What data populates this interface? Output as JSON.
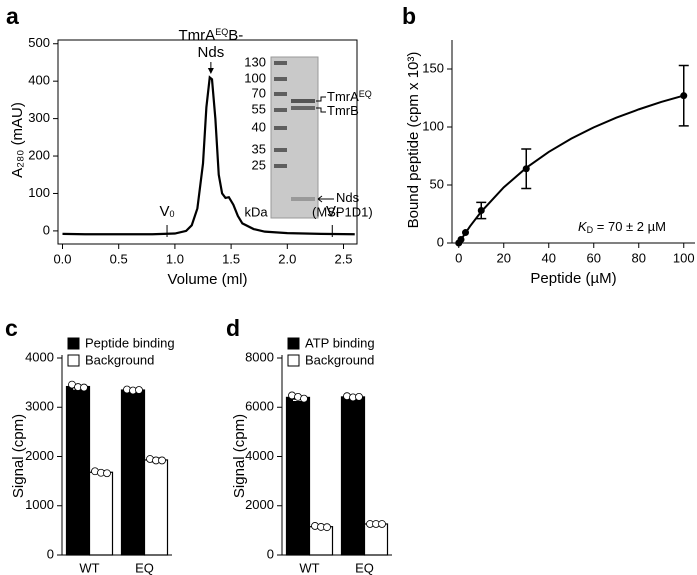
{
  "chart_data": [
    {
      "type": "line",
      "panel": "a",
      "x_label": "Volume (ml)",
      "y_label": "A₂₈₀ (mAU)",
      "xlim": [
        -0.04,
        2.62
      ],
      "ylim": [
        -35,
        510
      ],
      "xticks": [
        {
          "value": 0,
          "label": "0.0"
        },
        0.5,
        {
          "value": 1,
          "label": "1.0"
        },
        1.5,
        {
          "value": 2,
          "label": "2.0"
        },
        2.5
      ],
      "yticks": [
        0,
        100,
        200,
        300,
        400,
        500
      ],
      "series": [
        {
          "color": "#000000",
          "x": [
            0,
            0.2,
            0.5,
            0.8,
            1.0,
            1.1,
            1.15,
            1.2,
            1.25,
            1.28,
            1.31,
            1.33,
            1.36,
            1.39,
            1.42,
            1.45,
            1.48,
            1.52,
            1.56,
            1.6,
            1.7,
            1.8,
            2.0,
            2.3,
            2.6
          ],
          "values": [
            -8,
            -9,
            -9,
            -9,
            -7,
            0,
            15,
            60,
            180,
            330,
            410,
            405,
            300,
            150,
            100,
            88,
            90,
            70,
            40,
            20,
            5,
            -2,
            -6,
            -8,
            -9
          ]
        }
      ],
      "annotations": [
        {
          "text": [
            "TmrA",
            "EQ",
            "B-"
          ],
          "line2": "Nds",
          "x": 1.32
        },
        {
          "text": [
            "V",
            "0"
          ],
          "x": 0.93
        },
        {
          "text": [
            "V",
            "t"
          ],
          "x": 2.4
        }
      ],
      "gel": {
        "markers": [
          130,
          100,
          70,
          55,
          40,
          35,
          25
        ],
        "unit": "kDa",
        "bands": [
          [
            "TmrA",
            "EQ"
          ],
          [
            "TmrB"
          ],
          [
            "Nds"
          ]
        ],
        "note": "(MSP1D1)"
      }
    },
    {
      "type": "scatter",
      "panel": "b",
      "x_label": "Peptide (µM)",
      "y_label": "Bound peptide (cpm x 10³)",
      "xlim": [
        -3,
        105
      ],
      "ylim": [
        0,
        175
      ],
      "xticks": [
        0,
        20,
        40,
        60,
        80,
        100
      ],
      "yticks": [
        0,
        50,
        100,
        150
      ],
      "series": [
        {
          "color": "#000000",
          "x": [
            0,
            1,
            3,
            10,
            30,
            100
          ],
          "values": [
            0,
            3,
            9,
            28,
            64,
            127
          ],
          "errors": [
            null,
            null,
            null,
            7,
            17,
            26
          ]
        }
      ],
      "fit": {
        "color": "#000000",
        "x": [
          0,
          5,
          10,
          20,
          30,
          40,
          50,
          60,
          70,
          80,
          90,
          100
        ],
        "values": [
          0,
          14.4,
          27,
          48,
          64.8,
          78.5,
          90,
          99.7,
          108,
          115.2,
          121.6,
          127.1
        ]
      },
      "annotation": [
        "K",
        "D",
        " = 70 ± 2 µM"
      ]
    },
    {
      "type": "bar",
      "panel": "c",
      "y_label": "Signal (cpm)",
      "categories": [
        "WT",
        "EQ"
      ],
      "ylim": [
        0,
        4000
      ],
      "yticks": [
        0,
        1000,
        2000,
        3000,
        4000
      ],
      "legend": "top-left",
      "series": [
        {
          "name": "Peptide binding",
          "color": "#000000",
          "values": [
            3420,
            3350
          ],
          "errors": [
            50,
            30
          ],
          "replicates": [
            [
              3460,
              3410,
              3400
            ],
            [
              3360,
              3340,
              3350
            ]
          ]
        },
        {
          "name": "Background",
          "color": "#ffffff",
          "values": [
            1680,
            1930
          ],
          "errors": [
            30,
            40
          ],
          "replicates": [
            [
              1700,
              1670,
              1660
            ],
            [
              1950,
              1920,
              1920
            ]
          ]
        }
      ]
    },
    {
      "type": "bar",
      "panel": "d",
      "y_label": "Signal (cpm)",
      "categories": [
        "WT",
        "EQ"
      ],
      "ylim": [
        0,
        8000
      ],
      "yticks": [
        0,
        2000,
        4000,
        6000,
        8000
      ],
      "legend": "top-left",
      "series": [
        {
          "name": "ATP binding",
          "color": "#000000",
          "values": [
            6400,
            6420
          ],
          "errors": [
            120,
            60
          ],
          "replicates": [
            [
              6480,
              6420,
              6350
            ],
            [
              6450,
              6400,
              6420
            ]
          ]
        },
        {
          "name": "Background",
          "color": "#ffffff",
          "values": [
            1150,
            1260
          ],
          "errors": [
            50,
            30
          ],
          "replicates": [
            [
              1180,
              1140,
              1130
            ],
            [
              1260,
              1260,
              1260
            ]
          ]
        }
      ]
    }
  ]
}
